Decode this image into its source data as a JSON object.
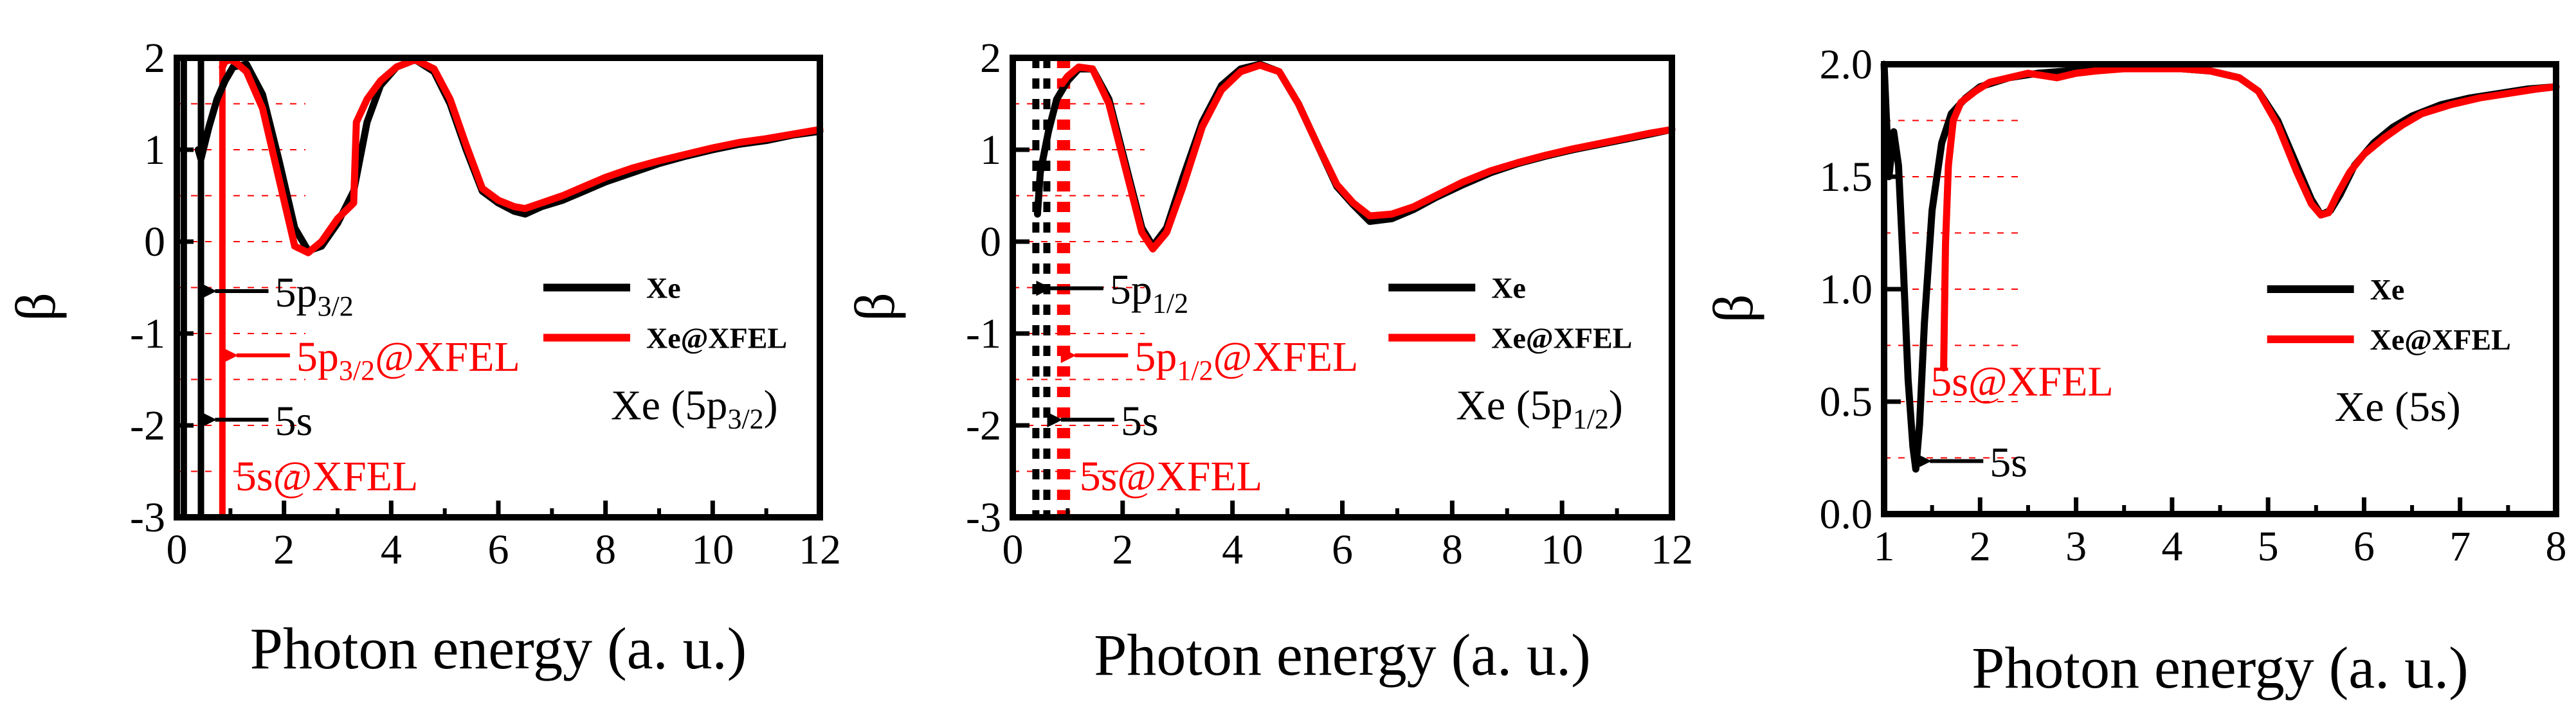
{
  "colors": {
    "xe": "#000000",
    "xfel": "#ff0000",
    "grid": "#ff0000",
    "axis": "#000000"
  },
  "chart_data": [
    {
      "type": "line",
      "xlabel": "Photon energy (a. u.)",
      "ylabel": "β",
      "xlim": [
        0,
        12
      ],
      "ylim": [
        -3,
        2
      ],
      "xticks": [
        0,
        2,
        4,
        6,
        8,
        10,
        12
      ],
      "yticks": [
        -3,
        -2,
        -1,
        0,
        1,
        2
      ],
      "xtick_labels": [
        "0",
        "2",
        "4",
        "6",
        "8",
        "10",
        "12"
      ],
      "ytick_labels": [
        "-3",
        "-2",
        "-1",
        "0",
        "1",
        "2"
      ],
      "grid": "dashed horizontal (red)",
      "legend": {
        "placement": "center-right",
        "entries": [
          "Xe",
          "Xe@XFEL"
        ]
      },
      "panel_label": {
        "prefix": "Xe (5p",
        "sub": "3/2",
        "suffix": ")"
      },
      "series": [
        {
          "name": "Xe",
          "color": "#000000",
          "x": [
            0.4,
            0.45,
            0.6,
            0.75,
            0.9,
            1.05,
            1.3,
            1.6,
            1.9,
            2.2,
            2.45,
            2.7,
            3.0,
            3.3,
            3.55,
            3.8,
            4.1,
            4.45,
            4.8,
            5.1,
            5.4,
            5.7,
            6.0,
            6.3,
            6.5,
            6.8,
            7.2,
            7.6,
            8.0,
            8.5,
            9.0,
            9.5,
            10.0,
            10.5,
            11.0,
            11.5,
            12.0
          ],
          "y": [
            1.0,
            0.9,
            1.25,
            1.55,
            1.75,
            1.9,
            1.93,
            1.6,
            0.9,
            0.15,
            -0.1,
            -0.05,
            0.2,
            0.55,
            1.3,
            1.7,
            1.9,
            1.98,
            1.85,
            1.5,
            1.0,
            0.55,
            0.42,
            0.33,
            0.3,
            0.38,
            0.45,
            0.55,
            0.65,
            0.75,
            0.85,
            0.93,
            1.0,
            1.06,
            1.1,
            1.16,
            1.2
          ]
        },
        {
          "name": "Xe@XFEL",
          "color": "#ff0000",
          "x": [
            0.85,
            0.9,
            1.0,
            1.1,
            1.3,
            1.6,
            1.9,
            2.2,
            2.45,
            2.7,
            3.0,
            3.3,
            3.35,
            3.55,
            3.8,
            4.1,
            4.45,
            4.8,
            5.1,
            5.4,
            5.7,
            6.0,
            6.3,
            6.5,
            6.8,
            7.2,
            7.6,
            8.0,
            8.5,
            9.0,
            9.5,
            10.0,
            10.5,
            11.0,
            11.5,
            12.0
          ],
          "y": [
            1.9,
            1.96,
            1.98,
            1.95,
            1.85,
            1.45,
            0.7,
            -0.05,
            -0.12,
            0.0,
            0.25,
            0.42,
            1.3,
            1.55,
            1.75,
            1.9,
            1.98,
            1.88,
            1.55,
            1.05,
            0.58,
            0.45,
            0.38,
            0.36,
            0.42,
            0.5,
            0.6,
            0.7,
            0.8,
            0.88,
            0.95,
            1.02,
            1.08,
            1.12,
            1.17,
            1.22
          ]
        }
      ],
      "thresholds": [
        {
          "x": 0.13,
          "color": "#000000",
          "style": "solid",
          "label": "",
          "label_y": null
        },
        {
          "x": 0.45,
          "color": "#000000",
          "style": "solid",
          "label": "5p",
          "sub": "3/2",
          "suffix": "",
          "label_y": -0.65
        },
        {
          "x": 0.85,
          "color": "#ff0000",
          "style": "solid",
          "label": "5p",
          "sub": "3/2",
          "suffix": "@XFEL",
          "label_y": -1.35
        },
        {
          "x": 0.45,
          "color": "#000000",
          "style": "none",
          "label": "5s",
          "sub": "",
          "suffix": "",
          "label_y": -2.05
        },
        {
          "x": 0.85,
          "color": "#ff0000",
          "style": "none",
          "label": "5s@XFEL",
          "sub": "",
          "suffix": "",
          "label_y": -2.65,
          "no_arrow": true
        }
      ]
    },
    {
      "type": "line",
      "xlabel": "Photon energy (a. u.)",
      "ylabel": "β",
      "xlim": [
        0,
        12
      ],
      "ylim": [
        -3,
        2
      ],
      "xticks": [
        0,
        2,
        4,
        6,
        8,
        10,
        12
      ],
      "yticks": [
        -3,
        -2,
        -1,
        0,
        1,
        2
      ],
      "xtick_labels": [
        "0",
        "2",
        "4",
        "6",
        "8",
        "10",
        "12"
      ],
      "ytick_labels": [
        "-3",
        "-2",
        "-1",
        "0",
        "1",
        "2"
      ],
      "grid": "dashed horizontal (red)",
      "legend": {
        "placement": "center-right",
        "entries": [
          "Xe",
          "Xe@XFEL"
        ]
      },
      "panel_label": {
        "prefix": "Xe (5p",
        "sub": "1/2",
        "suffix": ")"
      },
      "series": [
        {
          "name": "Xe",
          "color": "#000000",
          "x": [
            0.45,
            0.5,
            0.65,
            0.8,
            1.0,
            1.2,
            1.45,
            1.75,
            2.05,
            2.35,
            2.55,
            2.8,
            3.1,
            3.45,
            3.8,
            4.15,
            4.5,
            4.85,
            5.2,
            5.55,
            5.9,
            6.2,
            6.5,
            6.9,
            7.3,
            7.7,
            8.2,
            8.7,
            9.2,
            9.7,
            10.2,
            10.7,
            11.2,
            11.6,
            12.0
          ],
          "y": [
            0.3,
            0.75,
            1.2,
            1.55,
            1.75,
            1.88,
            1.88,
            1.55,
            0.85,
            0.15,
            -0.05,
            0.15,
            0.7,
            1.3,
            1.7,
            1.88,
            1.93,
            1.85,
            1.5,
            1.05,
            0.6,
            0.4,
            0.22,
            0.25,
            0.35,
            0.48,
            0.62,
            0.75,
            0.85,
            0.93,
            1.0,
            1.06,
            1.12,
            1.17,
            1.22
          ]
        },
        {
          "name": "Xe@XFEL",
          "color": "#ff0000",
          "x": [
            0.9,
            1.0,
            1.2,
            1.45,
            1.75,
            2.05,
            2.35,
            2.55,
            2.8,
            3.1,
            3.45,
            3.8,
            4.15,
            4.5,
            4.85,
            5.2,
            5.55,
            5.9,
            6.2,
            6.5,
            6.9,
            7.3,
            7.7,
            8.2,
            8.7,
            9.2,
            9.7,
            10.2,
            10.7,
            11.2,
            11.6,
            12.0
          ],
          "y": [
            1.72,
            1.8,
            1.9,
            1.88,
            1.5,
            0.8,
            0.1,
            -0.08,
            0.1,
            0.6,
            1.25,
            1.65,
            1.85,
            1.92,
            1.85,
            1.5,
            1.05,
            0.62,
            0.42,
            0.28,
            0.3,
            0.38,
            0.5,
            0.65,
            0.77,
            0.86,
            0.94,
            1.01,
            1.07,
            1.13,
            1.18,
            1.22
          ]
        }
      ],
      "thresholds": [
        {
          "x": 0.42,
          "color": "#000000",
          "style": "dotted",
          "label": "5p",
          "sub": "1/2",
          "suffix": "",
          "label_y": -0.62
        },
        {
          "x": 0.87,
          "color": "#ff0000",
          "style": "dotted",
          "label": "5p",
          "sub": "1/2",
          "suffix": "@XFEL",
          "label_y": -1.35
        },
        {
          "x": 0.62,
          "color": "#000000",
          "style": "dotted",
          "label": "5s",
          "sub": "",
          "suffix": "",
          "label_y": -2.05
        },
        {
          "x": 0.98,
          "color": "#ff0000",
          "style": "dotted",
          "label": "5s@XFEL",
          "sub": "",
          "suffix": "",
          "label_y": -2.65,
          "no_arrow": true
        }
      ]
    },
    {
      "type": "line",
      "xlabel": "Photon energy (a. u.)",
      "ylabel": "β",
      "xlim": [
        1,
        8
      ],
      "ylim": [
        0,
        2
      ],
      "xticks": [
        1,
        2,
        3,
        4,
        5,
        6,
        7,
        8
      ],
      "yticks": [
        0.0,
        0.5,
        1.0,
        1.5,
        2.0
      ],
      "xtick_labels": [
        "1",
        "2",
        "3",
        "4",
        "5",
        "6",
        "7",
        "8"
      ],
      "ytick_labels": [
        "0.0",
        "0.5",
        "1.0",
        "1.5",
        "2.0"
      ],
      "grid": "dashed horizontal (red)",
      "legend": {
        "placement": "center-right",
        "entries": [
          "Xe",
          "Xe@XFEL"
        ]
      },
      "panel_label": {
        "prefix": "Xe (5s)",
        "sub": "",
        "suffix": ""
      },
      "series": [
        {
          "name": "Xe",
          "color": "#000000",
          "x": [
            1.0,
            1.05,
            1.1,
            1.15,
            1.2,
            1.25,
            1.3,
            1.33,
            1.37,
            1.42,
            1.5,
            1.6,
            1.7,
            1.85,
            2.0,
            2.3,
            2.6,
            2.9,
            3.2,
            3.5,
            3.8,
            4.1,
            4.4,
            4.7,
            4.9,
            5.1,
            5.3,
            5.45,
            5.55,
            5.65,
            5.75,
            5.9,
            6.1,
            6.3,
            6.5,
            6.8,
            7.1,
            7.4,
            7.7,
            8.0
          ],
          "y": [
            2.0,
            1.5,
            1.7,
            1.55,
            1.1,
            0.6,
            0.3,
            0.2,
            0.4,
            0.85,
            1.35,
            1.65,
            1.78,
            1.85,
            1.9,
            1.94,
            1.96,
            1.97,
            1.98,
            1.98,
            1.98,
            1.98,
            1.97,
            1.94,
            1.88,
            1.75,
            1.55,
            1.4,
            1.33,
            1.35,
            1.42,
            1.55,
            1.65,
            1.72,
            1.77,
            1.82,
            1.85,
            1.87,
            1.89,
            1.9
          ]
        },
        {
          "name": "Xe@XFEL",
          "color": "#ff0000",
          "x": [
            1.62,
            1.64,
            1.67,
            1.72,
            1.8,
            1.95,
            2.1,
            2.3,
            2.5,
            2.65,
            2.8,
            3.0,
            3.2,
            3.5,
            3.8,
            4.1,
            4.4,
            4.7,
            4.9,
            5.1,
            5.3,
            5.45,
            5.55,
            5.63,
            5.72,
            5.85,
            6.0,
            6.2,
            6.4,
            6.6,
            6.9,
            7.2,
            7.5,
            7.8,
            8.0
          ],
          "y": [
            0.65,
            1.2,
            1.55,
            1.75,
            1.83,
            1.88,
            1.92,
            1.94,
            1.96,
            1.95,
            1.94,
            1.96,
            1.97,
            1.98,
            1.98,
            1.98,
            1.97,
            1.94,
            1.88,
            1.73,
            1.52,
            1.38,
            1.33,
            1.34,
            1.42,
            1.52,
            1.6,
            1.67,
            1.73,
            1.78,
            1.82,
            1.85,
            1.87,
            1.89,
            1.9
          ]
        }
      ],
      "thresholds": [
        {
          "x": 1.35,
          "color": "#ff0000",
          "style": "none",
          "label": "5s@XFEL",
          "sub": "",
          "suffix": "",
          "label_y": 0.55,
          "no_arrow": true
        },
        {
          "x": 1.33,
          "color": "#000000",
          "style": "none",
          "label": "5s",
          "sub": "",
          "suffix": "",
          "label_y": 0.19
        }
      ]
    }
  ]
}
